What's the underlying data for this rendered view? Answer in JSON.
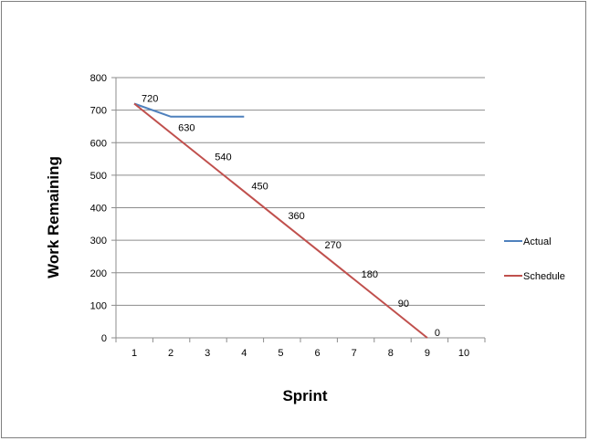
{
  "chart_data": {
    "type": "line",
    "title": "",
    "xlabel": "Sprint",
    "ylabel": "Work Remaining",
    "x": [
      1,
      2,
      3,
      4,
      5,
      6,
      7,
      8,
      9,
      10
    ],
    "xlim": [
      1,
      10
    ],
    "ylim": [
      0,
      800
    ],
    "yticks": [
      0,
      100,
      200,
      300,
      400,
      500,
      600,
      700,
      800
    ],
    "grid": true,
    "legend_position": "right",
    "series": [
      {
        "name": "Actual",
        "color": "#4f81bd",
        "x": [
          1,
          2,
          3,
          4
        ],
        "values": [
          720,
          680,
          680,
          680
        ],
        "labels": []
      },
      {
        "name": "Schedule",
        "color": "#c0504d",
        "x": [
          1,
          2,
          3,
          4,
          5,
          6,
          7,
          8,
          9
        ],
        "values": [
          720,
          630,
          540,
          450,
          360,
          270,
          180,
          90,
          0
        ],
        "labels": [
          "720",
          "630",
          "540",
          "450",
          "360",
          "270",
          "180",
          "90",
          "0"
        ]
      }
    ]
  }
}
